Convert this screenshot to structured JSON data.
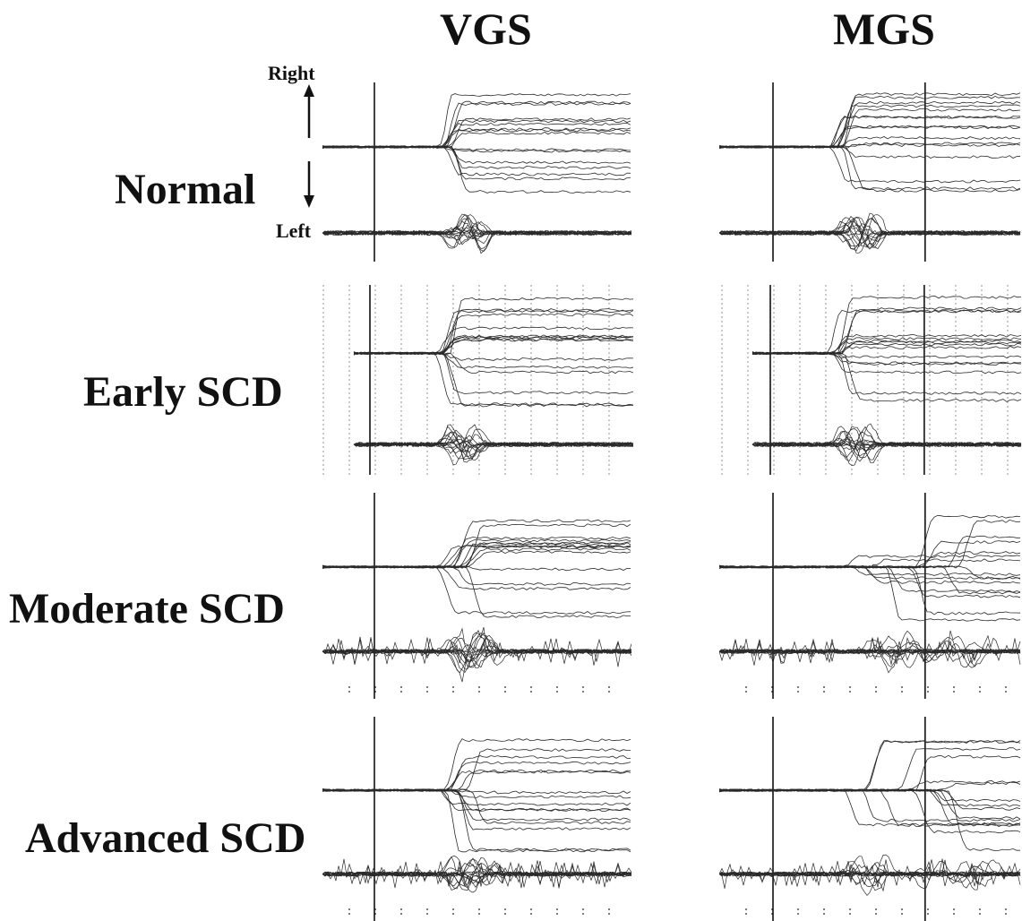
{
  "columns": {
    "vgs": "VGS",
    "mgs": "MGS"
  },
  "rows": {
    "normal": "Normal",
    "early": "Early SCD",
    "moderate": "Moderate SCD",
    "advanced": "Advanced SCD"
  },
  "axis": {
    "right": "Right",
    "left": "Left"
  },
  "colors": {
    "trace": "#2a2a2a",
    "background": "#ffffff"
  },
  "panels": [
    {
      "id": "normal-vgs",
      "row": "normal",
      "col": "vgs",
      "grid": false,
      "ticks": false,
      "mgs": false
    },
    {
      "id": "normal-mgs",
      "row": "normal",
      "col": "mgs",
      "grid": false,
      "ticks": false,
      "mgs": true
    },
    {
      "id": "early-vgs",
      "row": "early",
      "col": "vgs",
      "grid": true,
      "ticks": false,
      "mgs": false
    },
    {
      "id": "early-mgs",
      "row": "early",
      "col": "mgs",
      "grid": true,
      "ticks": false,
      "mgs": true
    },
    {
      "id": "moderate-vgs",
      "row": "moderate",
      "col": "vgs",
      "grid": false,
      "ticks": true,
      "mgs": false
    },
    {
      "id": "moderate-mgs",
      "row": "moderate",
      "col": "mgs",
      "grid": false,
      "ticks": true,
      "mgs": true
    },
    {
      "id": "advanced-vgs",
      "row": "advanced",
      "col": "vgs",
      "grid": false,
      "ticks": true,
      "mgs": false
    },
    {
      "id": "advanced-mgs",
      "row": "advanced",
      "col": "mgs",
      "grid": false,
      "ticks": true,
      "mgs": true
    }
  ]
}
